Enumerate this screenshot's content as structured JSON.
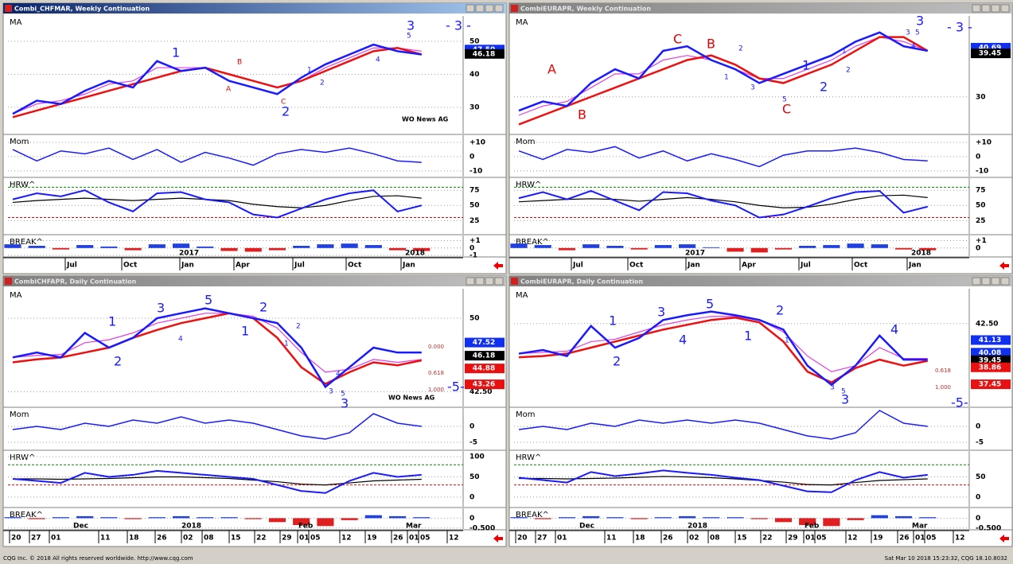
{
  "windows": [
    {
      "title": "Combi_CHFMAR, Weekly Continuation",
      "active": true,
      "main": {
        "label": "MA",
        "ylim": [
          22,
          57.7
        ],
        "yticks": [
          30,
          40,
          50
        ],
        "blue": [
          28,
          32,
          31,
          35,
          38,
          36,
          44,
          41,
          42,
          38,
          36,
          34,
          39,
          43,
          46,
          49,
          47,
          46
        ],
        "red": [
          27,
          29,
          31,
          33,
          35,
          37,
          39,
          41,
          42,
          40,
          38,
          36,
          38,
          41,
          44,
          47,
          48,
          46
        ],
        "pink": [
          28,
          31,
          32,
          34,
          37,
          38,
          42,
          42,
          42,
          40,
          38,
          36,
          38,
          42,
          45,
          48,
          48,
          47
        ],
        "boxes": [
          {
            "value": 47.5,
            "label": "47.50",
            "color": "#1030f0"
          },
          {
            "value": 46.18,
            "color": "#000000"
          }
        ]
      },
      "mom": {
        "label": "Mom",
        "ylim": [
          -14,
          15
        ],
        "yticks": [
          {
            "value": 10,
            "label": "+10"
          },
          0,
          -10
        ],
        "values": [
          5,
          -3,
          4,
          2,
          6,
          -2,
          5,
          -4,
          3,
          -1,
          -6,
          2,
          5,
          3,
          6,
          2,
          -3,
          -4
        ]
      },
      "hrw": {
        "label": "HRW^",
        "ylim": [
          3,
          95
        ],
        "yticks": [
          75,
          50,
          25
        ],
        "levels": [
          80,
          30
        ],
        "values": [
          60,
          70,
          65,
          75,
          55,
          40,
          70,
          72,
          60,
          55,
          35,
          30,
          45,
          60,
          70,
          75,
          40,
          50
        ],
        "avg": [
          55,
          58,
          60,
          62,
          60,
          58,
          60,
          62,
          60,
          58,
          52,
          48,
          46,
          50,
          58,
          65,
          66,
          62
        ]
      },
      "break": {
        "label": "BREAK^",
        "ylim": [
          -1.1,
          1.7
        ],
        "yticks": [
          {
            "value": 1,
            "label": "+1"
          },
          0,
          -1
        ],
        "values": [
          0.5,
          0.3,
          -0.2,
          0.4,
          0.2,
          -0.3,
          0.5,
          0.6,
          0.2,
          -0.4,
          -0.5,
          -0.3,
          0.3,
          0.5,
          0.6,
          0.4,
          -0.3,
          -0.4
        ]
      },
      "x_labels": [
        "Jul",
        "Oct",
        "Jan",
        "Apr",
        "Jul",
        "Oct",
        "Jan"
      ],
      "period_labels": [
        "2017",
        "2018"
      ],
      "annotations": [
        "WO News AG",
        "- 3 -",
        "1",
        "2",
        "3",
        "A",
        "B",
        "C",
        "5",
        "4",
        "1",
        "2"
      ],
      "fib": []
    },
    {
      "title": "CombiEURAPR, Weekly Continuation",
      "active": false,
      "main": {
        "label": "MA",
        "ylim": [
          22,
          47.6
        ],
        "yticks": [
          30
        ],
        "blue": [
          27,
          29,
          28,
          33,
          36,
          34,
          40,
          41,
          38,
          36,
          33,
          35,
          37,
          39,
          42,
          44,
          41,
          40
        ],
        "red": [
          24,
          26,
          28,
          30,
          32,
          34,
          36,
          38,
          39,
          37,
          34,
          33,
          35,
          37,
          40,
          43,
          43,
          40
        ],
        "pink": [
          26,
          28,
          29,
          32,
          35,
          35,
          38,
          39,
          38,
          36,
          34,
          34,
          36,
          38,
          41,
          43,
          42,
          40
        ],
        "boxes": [
          {
            "value": 40.69,
            "color": "#1030f0"
          },
          {
            "value": 39.45,
            "color": "#000000"
          }
        ]
      },
      "mom": {
        "label": "Mom",
        "ylim": [
          -14,
          15
        ],
        "yticks": [
          {
            "value": 10,
            "label": "+10"
          },
          0,
          -10
        ],
        "values": [
          4,
          -2,
          5,
          3,
          7,
          -1,
          4,
          -3,
          2,
          -2,
          -7,
          1,
          4,
          4,
          6,
          3,
          -2,
          -3
        ]
      },
      "hrw": {
        "label": "HRW^",
        "ylim": [
          3,
          95
        ],
        "yticks": [
          75,
          50,
          25
        ],
        "levels": [
          80,
          30
        ],
        "values": [
          62,
          72,
          60,
          74,
          58,
          42,
          72,
          70,
          58,
          50,
          30,
          35,
          48,
          62,
          72,
          74,
          38,
          48
        ],
        "avg": [
          56,
          58,
          60,
          61,
          60,
          57,
          60,
          63,
          60,
          56,
          50,
          46,
          47,
          52,
          60,
          66,
          67,
          63
        ]
      },
      "break": {
        "label": "BREAK^",
        "ylim": [
          -1.1,
          1.7
        ],
        "yticks": [
          {
            "value": 1,
            "label": "+1"
          },
          0
        ],
        "values": [
          0.6,
          0.4,
          -0.3,
          0.5,
          0.3,
          -0.2,
          0.4,
          0.5,
          0.1,
          -0.5,
          -0.6,
          -0.2,
          0.3,
          0.4,
          0.6,
          0.5,
          -0.2,
          -0.3
        ]
      },
      "x_labels": [
        "Jul",
        "Oct",
        "Jan",
        "Apr",
        "Jul",
        "Oct",
        "Jan"
      ],
      "period_labels": [
        "2017",
        "2018"
      ],
      "annotations": [
        "- 3 -",
        "A",
        "B",
        "C",
        "B",
        "C",
        "1",
        "2",
        "3",
        "1",
        "2",
        "3",
        "5",
        "1",
        "2",
        "3",
        "5",
        "4"
      ],
      "fib": []
    },
    {
      "title": "CombiCHFAPR, Daily Continuation",
      "active": false,
      "main": {
        "label": "MA",
        "ylim": [
          41,
          53
        ],
        "yticks": [
          50,
          {
            "value": 42.5,
            "label": "42.50"
          }
        ],
        "blue": [
          46,
          46.5,
          46,
          48.5,
          47,
          48,
          50,
          50.5,
          51,
          50.5,
          50,
          49.5,
          47,
          43,
          45,
          47,
          46.5,
          46.5
        ],
        "red": [
          45.5,
          45.8,
          46,
          46.5,
          47,
          48,
          48.8,
          49.5,
          50,
          50.5,
          50,
          48,
          45,
          43.3,
          44.5,
          45.5,
          45.2,
          45.7
        ],
        "pink": [
          46,
          46.2,
          46.3,
          47.5,
          47.8,
          48.5,
          49.5,
          50,
          50.5,
          50.5,
          50.2,
          49,
          46.5,
          44.5,
          44.8,
          45.8,
          45.5,
          45.8
        ],
        "boxes": [
          {
            "value": 47.52,
            "color": "#1030f0"
          },
          {
            "value": 46.18,
            "color": "#000000"
          },
          {
            "value": 44.88,
            "color": "#e81010"
          },
          {
            "value": 43.26,
            "color": "#e81010"
          }
        ]
      },
      "mom": {
        "label": "Mom",
        "ylim": [
          -7.25,
          5.75
        ],
        "yticks": [
          0,
          -5
        ],
        "values": [
          -1,
          0,
          -1,
          1,
          0,
          2,
          1,
          3,
          1,
          2,
          1,
          -1,
          -3,
          -4,
          -2,
          4,
          1,
          0
        ]
      },
      "hrw": {
        "label": "HRW^",
        "ylim": [
          -24,
          114
        ],
        "yticks": [
          100,
          50,
          0
        ],
        "levels": [
          80,
          30
        ],
        "values": [
          45,
          40,
          35,
          60,
          50,
          55,
          65,
          60,
          55,
          50,
          45,
          30,
          15,
          10,
          40,
          60,
          50,
          55
        ],
        "avg": [
          45,
          45,
          44,
          45,
          46,
          48,
          50,
          50,
          48,
          46,
          42,
          38,
          32,
          30,
          35,
          40,
          42,
          44
        ]
      },
      "break": {
        "label": "BREAK^",
        "ylim": [
          -0.55,
          0.5
        ],
        "yticks": [
          0,
          {
            "value": -0.5,
            "label": "-0.500"
          }
        ],
        "values": [
          0.05,
          -0.05,
          0.05,
          0.1,
          0.05,
          -0.05,
          0.05,
          0.1,
          0.05,
          0.05,
          -0.05,
          -0.2,
          -0.35,
          -0.4,
          -0.1,
          0.15,
          0.1,
          0.05
        ]
      },
      "x_labels": [
        "20",
        "27",
        "01",
        "11",
        "18",
        "26",
        "02",
        "08",
        "15",
        "22",
        "29",
        "01",
        "05",
        "12",
        "19",
        "26",
        "01",
        "05",
        "12"
      ],
      "period_labels": [
        "Dec",
        "2018",
        "Feb",
        "Mar"
      ],
      "annotations": [
        "WO News AG",
        "-5-",
        "1",
        "2",
        "3",
        "4",
        "5",
        "1",
        "2",
        "3",
        "1",
        "2",
        "3",
        "5",
        "4"
      ],
      "fib": [
        {
          "value": 0,
          "label": "0.000"
        },
        {
          "value": 0.618,
          "label": "0.618"
        },
        {
          "value": 1,
          "label": "1.000"
        }
      ]
    },
    {
      "title": "CombiEURAPR, Daily Continuation",
      "active": false,
      "main": {
        "label": "MA",
        "ylim": [
          35.6,
          45.4
        ],
        "yticks": [
          {
            "value": 42.5,
            "label": "42.50"
          }
        ],
        "blue": [
          40,
          40.3,
          39.8,
          42.3,
          40.5,
          41.3,
          42.8,
          43.2,
          43.5,
          43.2,
          42.8,
          42,
          39,
          37.4,
          39,
          41.5,
          39.5,
          39.5
        ],
        "red": [
          39.7,
          39.8,
          40,
          40.5,
          41,
          41.5,
          42,
          42.4,
          42.8,
          43,
          42.6,
          41,
          38.5,
          37.6,
          38.8,
          39.5,
          39,
          39.4
        ],
        "pink": [
          40,
          40.1,
          40.2,
          41,
          41.2,
          41.8,
          42.4,
          42.8,
          43.1,
          43.1,
          42.8,
          41.8,
          39.8,
          38.5,
          39,
          40.5,
          39.6,
          39.6
        ],
        "boxes": [
          {
            "value": 41.13,
            "color": "#1030f0"
          },
          {
            "value": 40.08,
            "color": "#1030f0"
          },
          {
            "value": 39.45,
            "color": "#000000"
          },
          {
            "value": 38.86,
            "color": "#e81010"
          },
          {
            "value": 37.45,
            "color": "#e81010"
          }
        ]
      },
      "mom": {
        "label": "Mom",
        "ylim": [
          -7.25,
          5.75
        ],
        "yticks": [
          0,
          -5
        ],
        "values": [
          -1,
          0,
          -1,
          1,
          0,
          2,
          1,
          2,
          1,
          2,
          1,
          -1,
          -3,
          -4,
          -2,
          5,
          1,
          0
        ]
      },
      "hrw": {
        "label": "HRW^",
        "ylim": [
          -24,
          114
        ],
        "yticks": [
          50,
          0
        ],
        "levels": [
          80,
          30
        ],
        "values": [
          48,
          42,
          36,
          62,
          52,
          58,
          66,
          60,
          55,
          48,
          42,
          28,
          14,
          12,
          42,
          62,
          48,
          55
        ],
        "avg": [
          46,
          46,
          45,
          46,
          47,
          49,
          51,
          50,
          48,
          45,
          41,
          37,
          31,
          30,
          36,
          41,
          43,
          45
        ]
      },
      "break": {
        "label": "BREAK^",
        "ylim": [
          -0.55,
          0.5
        ],
        "yticks": [
          0,
          {
            "value": -0.5,
            "label": "-0.500"
          }
        ],
        "values": [
          0.05,
          -0.05,
          0.05,
          0.1,
          0.05,
          -0.05,
          0.05,
          0.1,
          0.05,
          0.05,
          -0.05,
          -0.2,
          -0.35,
          -0.4,
          -0.1,
          0.15,
          0.1,
          0.05
        ]
      },
      "x_labels": [
        "20",
        "27",
        "01",
        "11",
        "18",
        "26",
        "02",
        "08",
        "15",
        "22",
        "29",
        "01",
        "05",
        "12",
        "19",
        "26",
        "01",
        "05",
        "12"
      ],
      "period_labels": [
        "Dec",
        "2018",
        "Feb",
        "Mar"
      ],
      "annotations": [
        "-5-",
        "1",
        "2",
        "3",
        "4",
        "5",
        "1",
        "2",
        "3",
        "4",
        "1",
        "3",
        "5"
      ],
      "fib": [
        {
          "value": 0.618,
          "label": "0.618"
        },
        {
          "value": 1,
          "label": "1.000"
        }
      ]
    }
  ],
  "footer": {
    "left": "CQG Inc. © 2018 All rights reserved worldwide. http://www.cqg.com",
    "right": "Sat Mar 10 2018 15:23:32, CQG 18.10.8032"
  }
}
